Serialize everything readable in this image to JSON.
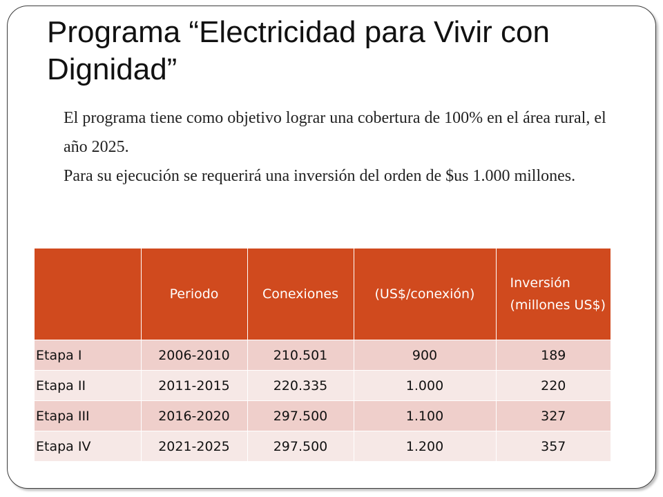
{
  "slide": {
    "title": "Programa “Electricidad para Vivir con Dignidad”",
    "paragraph_1": "El programa tiene como objetivo lograr una cobertura de 100% en el área rural, el año 2025.",
    "paragraph_2": "Para su ejecución se requerirá una inversión del orden de $us 1.000 millones."
  },
  "table": {
    "headers": [
      "",
      "Periodo",
      "Conexiones",
      "(US$/conexión)",
      "Inversión (millones US$)"
    ],
    "rows": [
      [
        "Etapa I",
        "2006-2010",
        "210.501",
        "900",
        "189"
      ],
      [
        "Etapa II",
        "2011-2015",
        "220.335",
        "1.000",
        "220"
      ],
      [
        "Etapa III",
        "2016-2020",
        "297.500",
        "1.100",
        "327"
      ],
      [
        "Etapa IV",
        "2021-2025",
        "297.500",
        "1.200",
        "357"
      ]
    ]
  },
  "colors": {
    "header_bg": "#d04a1e",
    "row_odd_bg": "#efcfcb",
    "row_even_bg": "#f6e8e6"
  }
}
